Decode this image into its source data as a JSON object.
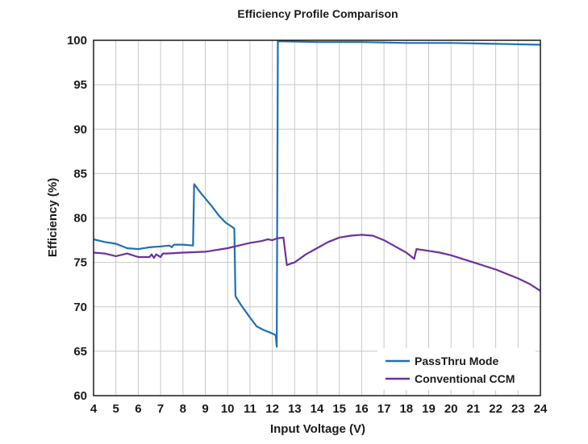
{
  "chart_data": {
    "type": "line",
    "title": "Efficiency Profile Comparison",
    "xlabel": "Input Voltage (V)",
    "ylabel": "Efficiency (%)",
    "xlim": [
      4,
      24
    ],
    "ylim": [
      60,
      100
    ],
    "xticks": [
      "4",
      "5",
      "6",
      "7",
      "8",
      "9",
      "10",
      "11",
      "12",
      "13",
      "14",
      "15",
      "16",
      "17",
      "18",
      "19",
      "20",
      "21",
      "22",
      "23",
      "24"
    ],
    "yticks": [
      "60",
      "65",
      "70",
      "75",
      "80",
      "85",
      "90",
      "95",
      "100"
    ],
    "grid": true,
    "legend_position": "bottom-right",
    "series": [
      {
        "name": "PassThru Mode",
        "color": "#1f6fb2",
        "points": [
          [
            4.0,
            77.6
          ],
          [
            4.5,
            77.3
          ],
          [
            5.0,
            77.1
          ],
          [
            5.5,
            76.6
          ],
          [
            6.0,
            76.5
          ],
          [
            6.5,
            76.7
          ],
          [
            7.0,
            76.8
          ],
          [
            7.4,
            76.9
          ],
          [
            7.5,
            76.7
          ],
          [
            7.6,
            77.0
          ],
          [
            8.0,
            77.0
          ],
          [
            8.45,
            76.9
          ],
          [
            8.5,
            83.8
          ],
          [
            8.8,
            82.8
          ],
          [
            9.0,
            82.2
          ],
          [
            9.3,
            81.3
          ],
          [
            9.6,
            80.3
          ],
          [
            9.9,
            79.5
          ],
          [
            10.2,
            79.0
          ],
          [
            10.3,
            78.8
          ],
          [
            10.35,
            71.2
          ],
          [
            10.6,
            70.2
          ],
          [
            11.0,
            68.8
          ],
          [
            11.3,
            67.8
          ],
          [
            11.6,
            67.4
          ],
          [
            12.0,
            67.0
          ],
          [
            12.15,
            66.8
          ],
          [
            12.2,
            65.5
          ],
          [
            12.25,
            99.9
          ],
          [
            14.0,
            99.8
          ],
          [
            16.0,
            99.8
          ],
          [
            18.0,
            99.7
          ],
          [
            20.0,
            99.7
          ],
          [
            22.0,
            99.6
          ],
          [
            24.0,
            99.5
          ]
        ]
      },
      {
        "name": "Conventional CCM",
        "color": "#6a329f",
        "points": [
          [
            4.0,
            76.1
          ],
          [
            4.5,
            76.0
          ],
          [
            5.0,
            75.7
          ],
          [
            5.5,
            76.0
          ],
          [
            6.0,
            75.6
          ],
          [
            6.5,
            75.6
          ],
          [
            6.6,
            75.9
          ],
          [
            6.7,
            75.5
          ],
          [
            6.8,
            75.9
          ],
          [
            7.0,
            75.6
          ],
          [
            7.1,
            76.0
          ],
          [
            7.3,
            76.0
          ],
          [
            8.0,
            76.1
          ],
          [
            9.0,
            76.2
          ],
          [
            10.0,
            76.6
          ],
          [
            10.5,
            76.9
          ],
          [
            11.0,
            77.2
          ],
          [
            11.5,
            77.4
          ],
          [
            11.8,
            77.6
          ],
          [
            12.0,
            77.5
          ],
          [
            12.2,
            77.7
          ],
          [
            12.5,
            77.8
          ],
          [
            12.65,
            74.7
          ],
          [
            13.0,
            75.0
          ],
          [
            13.5,
            75.9
          ],
          [
            14.0,
            76.6
          ],
          [
            14.5,
            77.3
          ],
          [
            15.0,
            77.8
          ],
          [
            15.5,
            78.0
          ],
          [
            16.0,
            78.1
          ],
          [
            16.5,
            78.0
          ],
          [
            17.0,
            77.5
          ],
          [
            17.5,
            76.8
          ],
          [
            18.0,
            76.1
          ],
          [
            18.35,
            75.4
          ],
          [
            18.45,
            76.5
          ],
          [
            19.0,
            76.3
          ],
          [
            19.5,
            76.1
          ],
          [
            20.0,
            75.8
          ],
          [
            20.5,
            75.4
          ],
          [
            21.0,
            75.0
          ],
          [
            21.5,
            74.6
          ],
          [
            22.0,
            74.2
          ],
          [
            22.5,
            73.7
          ],
          [
            23.0,
            73.2
          ],
          [
            23.5,
            72.6
          ],
          [
            24.0,
            71.8
          ]
        ]
      }
    ]
  }
}
